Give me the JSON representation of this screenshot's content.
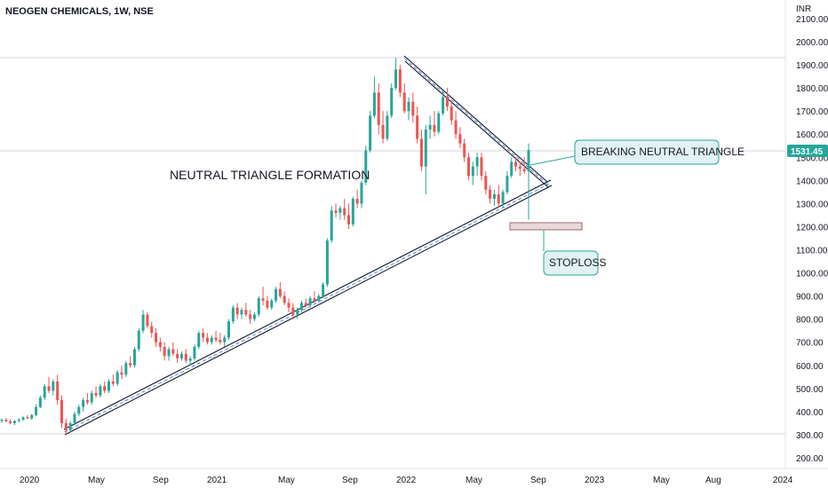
{
  "chart_data": {
    "type": "candlestick",
    "title": "NEOGEN CHEMICALS, 1W, NSE",
    "currency": "INR",
    "ylim": [
      150,
      2150
    ],
    "yticks": [
      "200.00",
      "300.00",
      "400.00",
      "500.00",
      "600.00",
      "700.00",
      "800.00",
      "900.00",
      "1000.00",
      "1100.00",
      "1200.00",
      "1300.00",
      "1400.00",
      "1500.00",
      "1600.00",
      "1700.00",
      "1800.00",
      "1900.00",
      "2000.00",
      "2100.00"
    ],
    "xticks": [
      "2020",
      "May",
      "Sep",
      "2021",
      "May",
      "Sep",
      "2022",
      "May",
      "Sep",
      "2023",
      "May",
      "Aug",
      "2024"
    ],
    "last_price_label": "1531.45",
    "colors": {
      "up": "#26a69a",
      "down": "#ef5350",
      "grid": "#e0e3eb",
      "text": "#131722"
    },
    "candles": [
      [
        360,
        370,
        350,
        365
      ],
      [
        365,
        372,
        355,
        358
      ],
      [
        358,
        368,
        345,
        350
      ],
      [
        350,
        362,
        342,
        360
      ],
      [
        360,
        372,
        352,
        365
      ],
      [
        365,
        380,
        360,
        375
      ],
      [
        375,
        385,
        368,
        370
      ],
      [
        370,
        390,
        365,
        385
      ],
      [
        385,
        430,
        380,
        420
      ],
      [
        420,
        470,
        415,
        460
      ],
      [
        460,
        520,
        450,
        510
      ],
      [
        510,
        550,
        480,
        490
      ],
      [
        490,
        540,
        470,
        530
      ],
      [
        530,
        560,
        430,
        450
      ],
      [
        450,
        470,
        330,
        350
      ],
      [
        350,
        370,
        300,
        320
      ],
      [
        320,
        360,
        310,
        350
      ],
      [
        350,
        400,
        340,
        390
      ],
      [
        390,
        430,
        380,
        420
      ],
      [
        420,
        460,
        400,
        450
      ],
      [
        450,
        480,
        430,
        440
      ],
      [
        440,
        490,
        430,
        480
      ],
      [
        480,
        510,
        460,
        470
      ],
      [
        470,
        520,
        460,
        510
      ],
      [
        510,
        530,
        480,
        490
      ],
      [
        490,
        540,
        480,
        530
      ],
      [
        530,
        560,
        510,
        520
      ],
      [
        520,
        580,
        510,
        570
      ],
      [
        570,
        600,
        540,
        560
      ],
      [
        560,
        620,
        550,
        610
      ],
      [
        610,
        640,
        590,
        600
      ],
      [
        600,
        680,
        590,
        670
      ],
      [
        670,
        760,
        660,
        750
      ],
      [
        750,
        840,
        740,
        820
      ],
      [
        820,
        830,
        760,
        770
      ],
      [
        770,
        790,
        720,
        740
      ],
      [
        740,
        760,
        680,
        700
      ],
      [
        700,
        720,
        660,
        680
      ],
      [
        680,
        700,
        620,
        640
      ],
      [
        640,
        680,
        620,
        670
      ],
      [
        670,
        700,
        640,
        650
      ],
      [
        650,
        670,
        610,
        630
      ],
      [
        630,
        660,
        620,
        650
      ],
      [
        650,
        670,
        610,
        620
      ],
      [
        620,
        640,
        600,
        630
      ],
      [
        630,
        690,
        620,
        680
      ],
      [
        680,
        750,
        670,
        740
      ],
      [
        740,
        760,
        700,
        720
      ],
      [
        720,
        740,
        690,
        700
      ],
      [
        700,
        730,
        690,
        720
      ],
      [
        720,
        750,
        700,
        710
      ],
      [
        710,
        740,
        690,
        700
      ],
      [
        700,
        730,
        680,
        720
      ],
      [
        720,
        800,
        710,
        790
      ],
      [
        790,
        860,
        780,
        850
      ],
      [
        850,
        870,
        800,
        820
      ],
      [
        820,
        850,
        800,
        840
      ],
      [
        840,
        870,
        810,
        820
      ],
      [
        820,
        840,
        780,
        800
      ],
      [
        800,
        830,
        790,
        820
      ],
      [
        820,
        900,
        810,
        890
      ],
      [
        890,
        940,
        860,
        880
      ],
      [
        880,
        900,
        840,
        850
      ],
      [
        850,
        890,
        840,
        880
      ],
      [
        880,
        940,
        870,
        930
      ],
      [
        930,
        960,
        890,
        900
      ],
      [
        900,
        920,
        860,
        870
      ],
      [
        870,
        890,
        830,
        850
      ],
      [
        850,
        870,
        800,
        820
      ],
      [
        820,
        850,
        800,
        840
      ],
      [
        840,
        880,
        830,
        870
      ],
      [
        870,
        890,
        850,
        860
      ],
      [
        860,
        900,
        850,
        890
      ],
      [
        890,
        920,
        870,
        880
      ],
      [
        880,
        910,
        870,
        900
      ],
      [
        900,
        960,
        890,
        950
      ],
      [
        950,
        1150,
        940,
        1140
      ],
      [
        1140,
        1290,
        1130,
        1270
      ],
      [
        1270,
        1300,
        1240,
        1260
      ],
      [
        1260,
        1290,
        1230,
        1280
      ],
      [
        1280,
        1320,
        1230,
        1250
      ],
      [
        1250,
        1300,
        1190,
        1210
      ],
      [
        1210,
        1330,
        1200,
        1320
      ],
      [
        1320,
        1360,
        1280,
        1300
      ],
      [
        1300,
        1400,
        1280,
        1390
      ],
      [
        1390,
        1550,
        1380,
        1530
      ],
      [
        1530,
        1700,
        1520,
        1680
      ],
      [
        1680,
        1850,
        1670,
        1780
      ],
      [
        1780,
        1820,
        1600,
        1640
      ],
      [
        1640,
        1700,
        1560,
        1580
      ],
      [
        1580,
        1700,
        1570,
        1680
      ],
      [
        1680,
        1820,
        1670,
        1800
      ],
      [
        1800,
        1930,
        1790,
        1880
      ],
      [
        1880,
        1900,
        1760,
        1780
      ],
      [
        1780,
        1820,
        1690,
        1700
      ],
      [
        1700,
        1760,
        1660,
        1740
      ],
      [
        1740,
        1780,
        1650,
        1680
      ],
      [
        1680,
        1720,
        1560,
        1580
      ],
      [
        1580,
        1620,
        1440,
        1460
      ],
      [
        1460,
        1640,
        1340,
        1620
      ],
      [
        1620,
        1680,
        1580,
        1640
      ],
      [
        1640,
        1700,
        1590,
        1610
      ],
      [
        1610,
        1700,
        1600,
        1690
      ],
      [
        1690,
        1790,
        1680,
        1760
      ],
      [
        1760,
        1800,
        1700,
        1720
      ],
      [
        1720,
        1740,
        1640,
        1660
      ],
      [
        1660,
        1700,
        1580,
        1600
      ],
      [
        1600,
        1630,
        1540,
        1560
      ],
      [
        1560,
        1580,
        1480,
        1500
      ],
      [
        1500,
        1520,
        1400,
        1420
      ],
      [
        1420,
        1480,
        1380,
        1460
      ],
      [
        1460,
        1520,
        1420,
        1500
      ],
      [
        1500,
        1520,
        1400,
        1420
      ],
      [
        1420,
        1440,
        1340,
        1360
      ],
      [
        1360,
        1380,
        1300,
        1320
      ],
      [
        1320,
        1360,
        1290,
        1340
      ],
      [
        1340,
        1380,
        1280,
        1300
      ],
      [
        1300,
        1360,
        1280,
        1350
      ],
      [
        1350,
        1440,
        1340,
        1420
      ],
      [
        1420,
        1500,
        1410,
        1480
      ],
      [
        1480,
        1500,
        1440,
        1460
      ],
      [
        1460,
        1480,
        1420,
        1450
      ],
      [
        1450,
        1500,
        1430,
        1440
      ],
      [
        1440,
        1560,
        1230,
        1531.45
      ]
    ]
  },
  "annotations": {
    "formation_label": "NEUTRAL TRIANGLE FORMATION",
    "breakout_callout": "BREAKING NEUTRAL TRIANGLE",
    "stoploss_callout": "STOPLOSS"
  }
}
